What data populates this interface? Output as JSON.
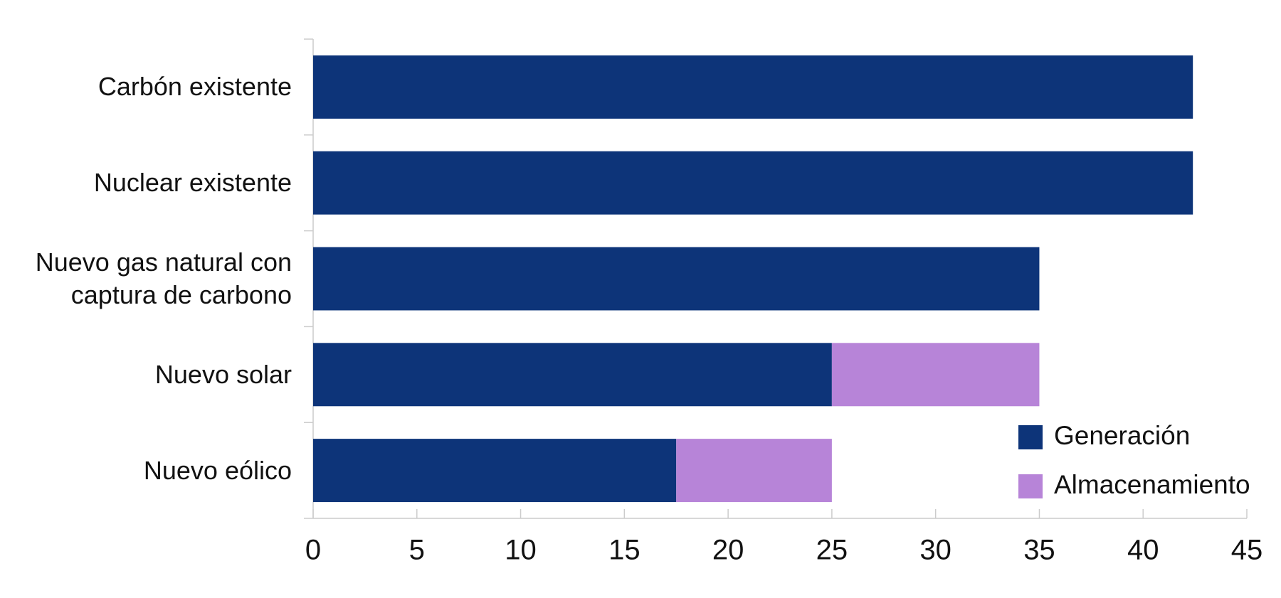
{
  "chart_data": {
    "type": "stacked-barh",
    "categories": [
      "Carbón existente",
      "Nuclear existente",
      "Nuevo gas natural con\ncaptura de carbono",
      "Nuevo solar",
      "Nuevo eólico"
    ],
    "series": [
      {
        "name": "Generación",
        "color": "#0d3479",
        "values": [
          42.4,
          42.4,
          35,
          25,
          17.5
        ]
      },
      {
        "name": "Almacenamiento",
        "color": "#b784d8",
        "values": [
          null,
          null,
          null,
          10,
          7.5
        ]
      }
    ],
    "xlim": [
      0,
      45
    ],
    "xticks": [
      0,
      5,
      10,
      15,
      20,
      25,
      30,
      35,
      40,
      45
    ],
    "legend": "lower right"
  }
}
